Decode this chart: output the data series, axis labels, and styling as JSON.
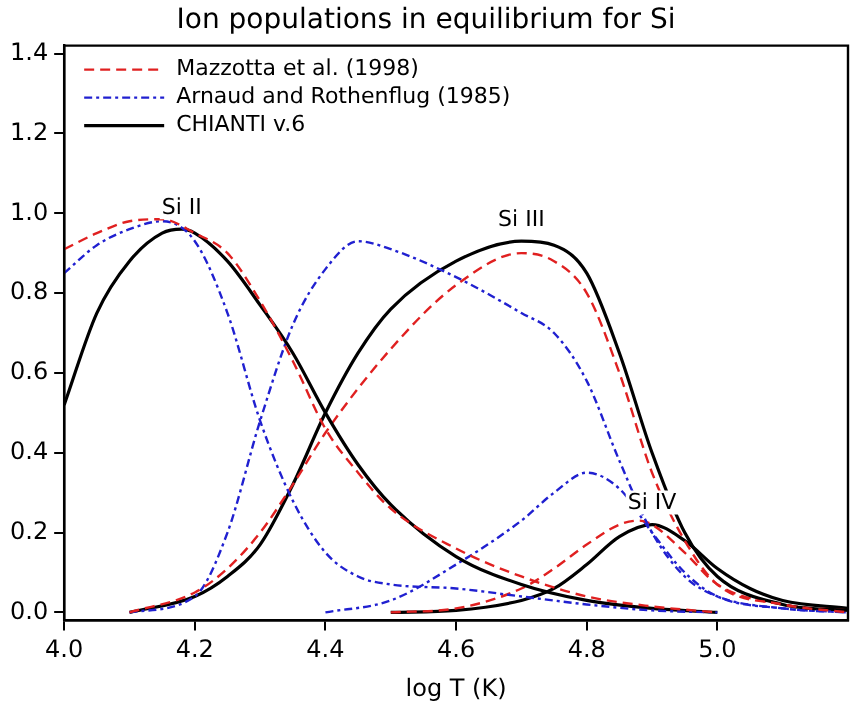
{
  "chart_data": {
    "type": "line",
    "title": "Ion populations in equilibrium for Si",
    "xlabel": "log T (K)",
    "xlim": [
      4.0,
      5.2
    ],
    "ylim": [
      -0.02,
      1.42
    ],
    "xticks": [
      {
        "value": 4.0,
        "label": "4.0"
      },
      4.2,
      4.4,
      4.6,
      4.8,
      {
        "value": 5.0,
        "label": "5.0"
      }
    ],
    "yticks": [
      {
        "value": 0,
        "label": "0.0"
      },
      0.2,
      0.4,
      0.6,
      0.8,
      {
        "value": 1.0,
        "label": "1.0"
      },
      1.2,
      1.4
    ],
    "grid": false,
    "legend": "top left",
    "marker": "none",
    "series": [
      {
        "name": "Mazzotta et al. (1998)",
        "color": "#e02020",
        "line_style": "dashed",
        "x": [
          4.0,
          4.05,
          4.1,
          4.15,
          4.2,
          4.25,
          4.3,
          4.35,
          4.4,
          4.45,
          4.5,
          4.6,
          4.7,
          4.8,
          4.9,
          5.0
        ],
        "values": [
          0.91,
          0.95,
          0.98,
          0.985,
          0.95,
          0.9,
          0.78,
          0.63,
          0.46,
          0.35,
          0.26,
          0.16,
          0.09,
          0.04,
          0.015,
          0.0
        ]
      },
      {
        "name": "Arnaud and Rothenflug (1985)",
        "color": "#2020d0",
        "line_style": "dashdot",
        "x": [
          4.0,
          4.05,
          4.1,
          4.15,
          4.2,
          4.25,
          4.3,
          4.35,
          4.4,
          4.45,
          4.5,
          4.6,
          4.7,
          4.8,
          4.9,
          5.0
        ],
        "values": [
          0.85,
          0.92,
          0.96,
          0.98,
          0.93,
          0.75,
          0.48,
          0.28,
          0.15,
          0.09,
          0.07,
          0.06,
          0.04,
          0.02,
          0.005,
          0.0
        ]
      },
      {
        "name": "CHIANTI v.6",
        "color": "#000000",
        "line_style": "solid",
        "x": [
          4.0,
          4.05,
          4.1,
          4.15,
          4.18,
          4.2,
          4.25,
          4.3,
          4.35,
          4.4,
          4.45,
          4.5,
          4.6,
          4.7,
          4.8,
          4.9,
          5.0
        ],
        "values": [
          0.52,
          0.75,
          0.88,
          0.95,
          0.96,
          0.95,
          0.88,
          0.77,
          0.65,
          0.5,
          0.37,
          0.27,
          0.14,
          0.07,
          0.03,
          0.01,
          0.0
        ]
      },
      {
        "color": "#e02020",
        "line_style": "dashed",
        "x": [
          4.1,
          4.2,
          4.25,
          4.3,
          4.35,
          4.4,
          4.5,
          4.6,
          4.7,
          4.75,
          4.8,
          4.85,
          4.9,
          4.95,
          5.0,
          5.1,
          5.2
        ],
        "values": [
          0.0,
          0.05,
          0.11,
          0.2,
          0.32,
          0.45,
          0.66,
          0.82,
          0.9,
          0.88,
          0.8,
          0.6,
          0.35,
          0.18,
          0.07,
          0.02,
          0.0
        ]
      },
      {
        "color": "#2020d0",
        "line_style": "dashdot",
        "x": [
          4.1,
          4.2,
          4.25,
          4.3,
          4.35,
          4.4,
          4.45,
          4.5,
          4.6,
          4.7,
          4.75,
          4.8,
          4.85,
          4.9,
          4.95,
          5.0,
          5.1,
          5.2
        ],
        "values": [
          0.0,
          0.04,
          0.2,
          0.48,
          0.72,
          0.86,
          0.93,
          0.91,
          0.84,
          0.75,
          0.7,
          0.58,
          0.38,
          0.2,
          0.09,
          0.04,
          0.01,
          0.0
        ]
      },
      {
        "color": "#000000",
        "line_style": "solid",
        "x": [
          4.1,
          4.2,
          4.25,
          4.3,
          4.35,
          4.4,
          4.45,
          4.5,
          4.6,
          4.7,
          4.75,
          4.8,
          4.85,
          4.9,
          4.95,
          5.0,
          5.1,
          5.2
        ],
        "values": [
          0.0,
          0.04,
          0.09,
          0.17,
          0.32,
          0.5,
          0.65,
          0.76,
          0.88,
          0.93,
          0.92,
          0.85,
          0.65,
          0.4,
          0.2,
          0.09,
          0.02,
          0.005
        ]
      },
      {
        "color": "#e02020",
        "line_style": "dashed",
        "x": [
          4.5,
          4.6,
          4.7,
          4.75,
          4.8,
          4.85,
          4.88,
          4.9,
          4.95,
          5.0,
          5.1,
          5.2
        ],
        "values": [
          0.0,
          0.01,
          0.06,
          0.11,
          0.17,
          0.22,
          0.23,
          0.22,
          0.15,
          0.07,
          0.02,
          0.005
        ]
      },
      {
        "color": "#2020d0",
        "line_style": "dashdot",
        "x": [
          4.4,
          4.5,
          4.6,
          4.7,
          4.75,
          4.8,
          4.85,
          4.9,
          4.95,
          5.0,
          5.1,
          5.2
        ],
        "values": [
          0.0,
          0.03,
          0.12,
          0.23,
          0.3,
          0.35,
          0.31,
          0.2,
          0.1,
          0.04,
          0.01,
          0.0
        ]
      },
      {
        "color": "#000000",
        "line_style": "solid",
        "x": [
          4.5,
          4.6,
          4.7,
          4.75,
          4.8,
          4.85,
          4.9,
          4.95,
          5.0,
          5.05,
          5.1,
          5.2
        ],
        "values": [
          0.0,
          0.005,
          0.03,
          0.06,
          0.12,
          0.19,
          0.22,
          0.18,
          0.11,
          0.06,
          0.03,
          0.01
        ]
      }
    ],
    "annotations": [
      {
        "text": "Si II",
        "x": 4.18,
        "y": 0.96
      },
      {
        "text": "Si III",
        "x": 4.7,
        "y": 0.93
      },
      {
        "text": "Si IV",
        "x": 4.9,
        "y": 0.22
      }
    ]
  }
}
